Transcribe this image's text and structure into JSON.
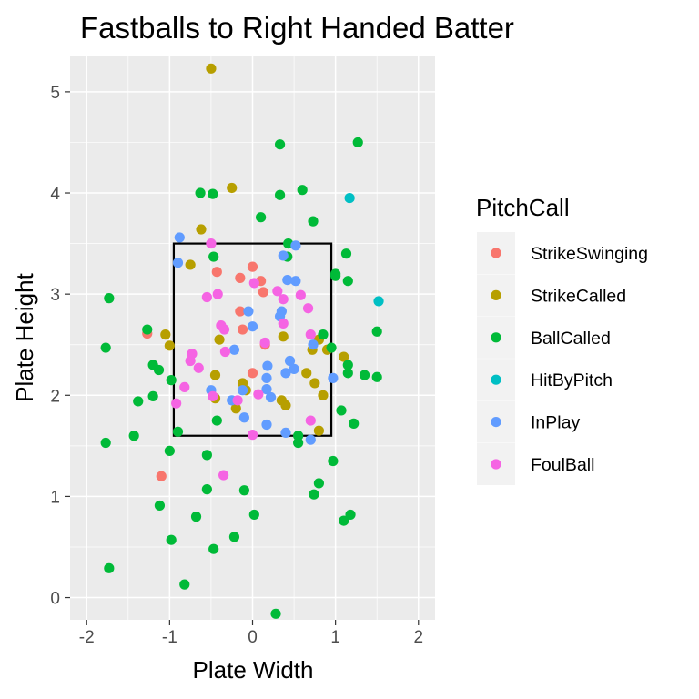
{
  "chart_data": {
    "type": "scatter",
    "title": "Fastballs to Right Handed Batter",
    "xlabel": "Plate Width",
    "ylabel": "Plate Height",
    "xlim": [
      -2.2,
      2.2
    ],
    "ylim": [
      -0.22,
      5.35
    ],
    "x_ticks": [
      -2,
      -1,
      0,
      1,
      2
    ],
    "y_ticks": [
      0,
      1,
      2,
      3,
      4,
      5
    ],
    "x_tick_labels": [
      "-2",
      "-1",
      "0",
      "1",
      "2"
    ],
    "y_tick_labels": [
      "0",
      "1",
      "2",
      "3",
      "4",
      "5"
    ],
    "grid": true,
    "strike_zone": {
      "x": [
        -0.95,
        0.95
      ],
      "y": [
        1.6,
        3.5
      ]
    },
    "legend": {
      "title": "PitchCall",
      "placement": "right"
    },
    "series": [
      {
        "name": "StrikeSwinging",
        "color": "#F8766D",
        "points": [
          [
            -1.27,
            2.61
          ],
          [
            -1.1,
            1.2
          ],
          [
            0.0,
            3.27
          ],
          [
            -0.15,
            3.16
          ],
          [
            0.1,
            3.13
          ],
          [
            -0.15,
            2.83
          ],
          [
            -0.43,
            3.22
          ],
          [
            0.13,
            3.02
          ],
          [
            -0.12,
            2.65
          ],
          [
            0.15,
            2.5
          ],
          [
            0.0,
            2.22
          ]
        ]
      },
      {
        "name": "StrikeCalled",
        "color": "#B79F00",
        "points": [
          [
            -0.5,
            5.23
          ],
          [
            -0.25,
            4.05
          ],
          [
            -0.62,
            3.64
          ],
          [
            -0.75,
            3.29
          ],
          [
            -1.05,
            2.6
          ],
          [
            -1.0,
            2.49
          ],
          [
            -0.4,
            2.55
          ],
          [
            -0.45,
            2.2
          ],
          [
            -0.12,
            2.12
          ],
          [
            -0.08,
            2.05
          ],
          [
            -0.2,
            1.87
          ],
          [
            -0.45,
            1.97
          ],
          [
            0.37,
            2.58
          ],
          [
            0.35,
            1.95
          ],
          [
            0.4,
            1.9
          ],
          [
            0.65,
            2.22
          ],
          [
            0.72,
            2.45
          ],
          [
            0.8,
            2.55
          ],
          [
            0.9,
            2.45
          ],
          [
            0.85,
            2.0
          ],
          [
            0.75,
            2.12
          ],
          [
            1.1,
            2.38
          ],
          [
            0.8,
            1.65
          ]
        ]
      },
      {
        "name": "BallCalled",
        "color": "#00BA38",
        "points": [
          [
            0.33,
            4.48
          ],
          [
            1.27,
            4.5
          ],
          [
            0.6,
            4.03
          ],
          [
            -0.63,
            4.0
          ],
          [
            -0.48,
            3.99
          ],
          [
            0.33,
            3.98
          ],
          [
            0.1,
            3.76
          ],
          [
            0.73,
            3.72
          ],
          [
            -0.47,
            3.37
          ],
          [
            0.43,
            3.5
          ],
          [
            0.42,
            3.37
          ],
          [
            1.13,
            3.4
          ],
          [
            1.0,
            3.18
          ],
          [
            1.0,
            3.2
          ],
          [
            1.15,
            3.13
          ],
          [
            -1.73,
            2.96
          ],
          [
            1.5,
            2.63
          ],
          [
            -1.27,
            2.65
          ],
          [
            0.85,
            2.6
          ],
          [
            0.95,
            2.47
          ],
          [
            -1.77,
            2.47
          ],
          [
            -1.2,
            2.3
          ],
          [
            -1.13,
            2.25
          ],
          [
            1.15,
            2.3
          ],
          [
            1.15,
            2.22
          ],
          [
            1.35,
            2.2
          ],
          [
            1.5,
            2.18
          ],
          [
            -0.98,
            2.15
          ],
          [
            -1.2,
            1.99
          ],
          [
            -1.38,
            1.94
          ],
          [
            1.07,
            1.85
          ],
          [
            1.22,
            1.72
          ],
          [
            -0.43,
            1.75
          ],
          [
            -0.9,
            1.64
          ],
          [
            0.55,
            1.6
          ],
          [
            0.55,
            1.53
          ],
          [
            -1.43,
            1.6
          ],
          [
            -1.77,
            1.53
          ],
          [
            -1.0,
            1.45
          ],
          [
            -0.55,
            1.41
          ],
          [
            0.97,
            1.35
          ],
          [
            0.8,
            1.13
          ],
          [
            -0.55,
            1.07
          ],
          [
            -0.1,
            1.06
          ],
          [
            0.74,
            1.02
          ],
          [
            -1.12,
            0.91
          ],
          [
            0.02,
            0.82
          ],
          [
            1.18,
            0.82
          ],
          [
            -0.68,
            0.8
          ],
          [
            1.1,
            0.76
          ],
          [
            -0.98,
            0.57
          ],
          [
            -0.22,
            0.6
          ],
          [
            -0.47,
            0.48
          ],
          [
            -1.73,
            0.29
          ],
          [
            -0.82,
            0.13
          ],
          [
            0.28,
            -0.16
          ]
        ]
      },
      {
        "name": "HitByPitch",
        "color": "#00BFC4",
        "points": [
          [
            1.17,
            3.95
          ],
          [
            1.52,
            2.93
          ]
        ]
      },
      {
        "name": "InPlay",
        "color": "#619CFF",
        "points": [
          [
            -0.88,
            3.56
          ],
          [
            -0.9,
            3.31
          ],
          [
            0.52,
            3.48
          ],
          [
            0.37,
            3.38
          ],
          [
            0.42,
            3.14
          ],
          [
            0.52,
            3.13
          ],
          [
            -0.05,
            2.83
          ],
          [
            0.35,
            2.83
          ],
          [
            0.33,
            2.78
          ],
          [
            0.0,
            2.68
          ],
          [
            0.73,
            2.5
          ],
          [
            -0.22,
            2.45
          ],
          [
            0.45,
            2.34
          ],
          [
            0.18,
            2.29
          ],
          [
            0.4,
            2.22
          ],
          [
            0.5,
            2.26
          ],
          [
            0.17,
            2.17
          ],
          [
            0.97,
            2.17
          ],
          [
            0.17,
            2.06
          ],
          [
            -0.12,
            2.05
          ],
          [
            -0.5,
            2.05
          ],
          [
            0.22,
            1.98
          ],
          [
            -0.25,
            1.95
          ],
          [
            -0.1,
            1.78
          ],
          [
            0.17,
            1.71
          ],
          [
            0.4,
            1.63
          ],
          [
            0.7,
            1.56
          ]
        ]
      },
      {
        "name": "FoulBall",
        "color": "#F564E3",
        "points": [
          [
            -0.5,
            3.5
          ],
          [
            0.02,
            3.11
          ],
          [
            0.3,
            3.03
          ],
          [
            0.58,
            2.99
          ],
          [
            -0.55,
            2.97
          ],
          [
            -0.42,
            3.0
          ],
          [
            0.37,
            2.95
          ],
          [
            0.67,
            2.86
          ],
          [
            0.37,
            2.71
          ],
          [
            -0.38,
            2.69
          ],
          [
            -0.34,
            2.65
          ],
          [
            0.7,
            2.6
          ],
          [
            0.15,
            2.52
          ],
          [
            -0.73,
            2.41
          ],
          [
            -0.33,
            2.43
          ],
          [
            -0.75,
            2.34
          ],
          [
            -0.65,
            2.27
          ],
          [
            -0.82,
            2.08
          ],
          [
            -0.48,
            1.99
          ],
          [
            -0.92,
            1.92
          ],
          [
            0.07,
            2.01
          ],
          [
            -0.18,
            1.95
          ],
          [
            0.7,
            1.75
          ],
          [
            0.0,
            1.61
          ],
          [
            -0.35,
            1.21
          ]
        ]
      }
    ]
  }
}
